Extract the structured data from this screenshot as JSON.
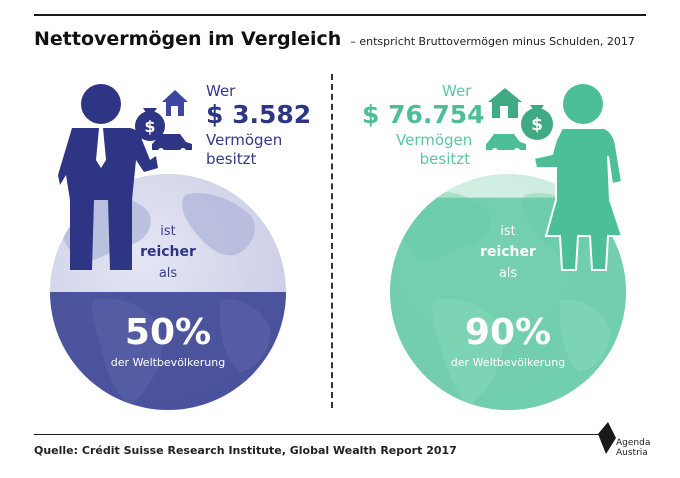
{
  "title": "Nettovermögen im Vergleich",
  "subtitle": "– entspricht Bruttovermögen minus Schulden, 2017",
  "left": {
    "wer": "Wer",
    "amount": "$ 3.582",
    "vermoegen": "Vermögen",
    "besitzt": "besitzt",
    "ist": "ist",
    "reicher": "reicher",
    "als": "als",
    "percent": "50%",
    "percent_label": "der Weltbevölkerung",
    "color": "#2e3585",
    "fill_fraction": 0.5
  },
  "right": {
    "wer": "Wer",
    "amount": "$ 76.754",
    "vermoegen": "Vermögen",
    "besitzt": "besitzt",
    "ist": "ist",
    "reicher": "reicher",
    "als": "als",
    "percent": "90%",
    "percent_label": "der Weltbevölkerung",
    "color": "#4dbf98",
    "fill_fraction": 0.9
  },
  "source": "Quelle: Crédit Suisse Research Institute, Global Wealth Report 2017",
  "logo": {
    "line1": "Agenda",
    "line2": "Austria"
  }
}
